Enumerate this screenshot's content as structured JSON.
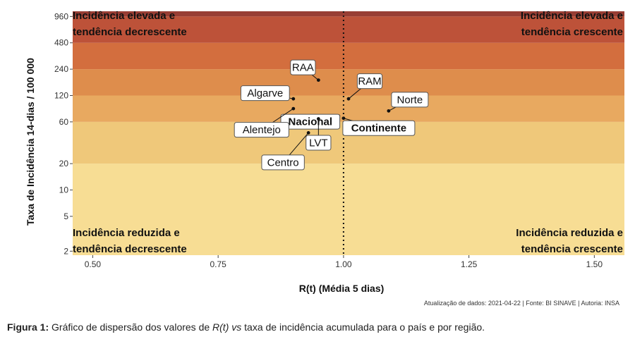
{
  "chart_data": {
    "type": "scatter",
    "xlabel": "R(t) (Média 5 dias)",
    "ylabel": "Taxa de Incidência 14-dias / 100 000",
    "xlim": [
      0.46,
      1.56
    ],
    "ylim_log": [
      1.8,
      1100
    ],
    "y_scale": "log",
    "x_ticks": [
      0.5,
      0.75,
      1.0,
      1.25,
      1.5
    ],
    "x_tick_labels": [
      "0.50",
      "0.75",
      "1.00",
      "1.25",
      "1.50"
    ],
    "y_ticks": [
      2,
      5,
      10,
      20,
      60,
      120,
      240,
      480,
      960
    ],
    "y_tick_labels": [
      "2",
      "5",
      "10",
      "20",
      "60",
      "120",
      "240",
      "480",
      "960"
    ],
    "reference_line_x": 1.0,
    "bands": [
      {
        "from": 1.8,
        "to": 20,
        "color": "#f7dd94"
      },
      {
        "from": 20,
        "to": 60,
        "color": "#efc87a"
      },
      {
        "from": 60,
        "to": 120,
        "color": "#e8a960"
      },
      {
        "from": 120,
        "to": 240,
        "color": "#de8d4c"
      },
      {
        "from": 240,
        "to": 480,
        "color": "#d36e3e"
      },
      {
        "from": 480,
        "to": 960,
        "color": "#bd5239"
      },
      {
        "from": 960,
        "to": 1100,
        "color": "#983e34"
      }
    ],
    "points": [
      {
        "label": "RAA",
        "x": 0.95,
        "y": 180,
        "bold": false
      },
      {
        "label": "RAM",
        "x": 1.01,
        "y": 110,
        "bold": false
      },
      {
        "label": "Algarve",
        "x": 0.9,
        "y": 110,
        "bold": false
      },
      {
        "label": "Nacional",
        "x": 0.99,
        "y": 70,
        "bold": true
      },
      {
        "label": "Continente",
        "x": 1.0,
        "y": 66,
        "bold": true
      },
      {
        "label": "Norte",
        "x": 1.09,
        "y": 80,
        "bold": false
      },
      {
        "label": "Alentejo",
        "x": 0.9,
        "y": 85,
        "bold": false
      },
      {
        "label": "LVT",
        "x": 0.95,
        "y": 65,
        "bold": false
      },
      {
        "label": "Centro",
        "x": 0.93,
        "y": 45,
        "bold": false
      }
    ],
    "quadrant_labels": [
      {
        "line1": "Incidência elevada e",
        "line2": "tendência decrescente",
        "pos": "top-left"
      },
      {
        "line1": "Incidência elevada e",
        "line2": "tendência crescente",
        "pos": "top-right"
      },
      {
        "line1": "Incidência reduzida e",
        "line2": "tendência decrescente",
        "pos": "bottom-left"
      },
      {
        "line1": "Incidência reduzida e",
        "line2": "tendência crescente",
        "pos": "bottom-right"
      }
    ]
  },
  "source_text": "Atualização de dados: 2021-04-22 | Fonte: BI SINAVE | Autoria: INSA",
  "caption": {
    "prefix": "Figura 1:",
    "text_1": " Gráfico de dispersão dos valores de ",
    "rt": "R(t)",
    "text_2": " ",
    "vs": "vs",
    "text_3": " taxa de incidência acumulada para o país e por região."
  }
}
